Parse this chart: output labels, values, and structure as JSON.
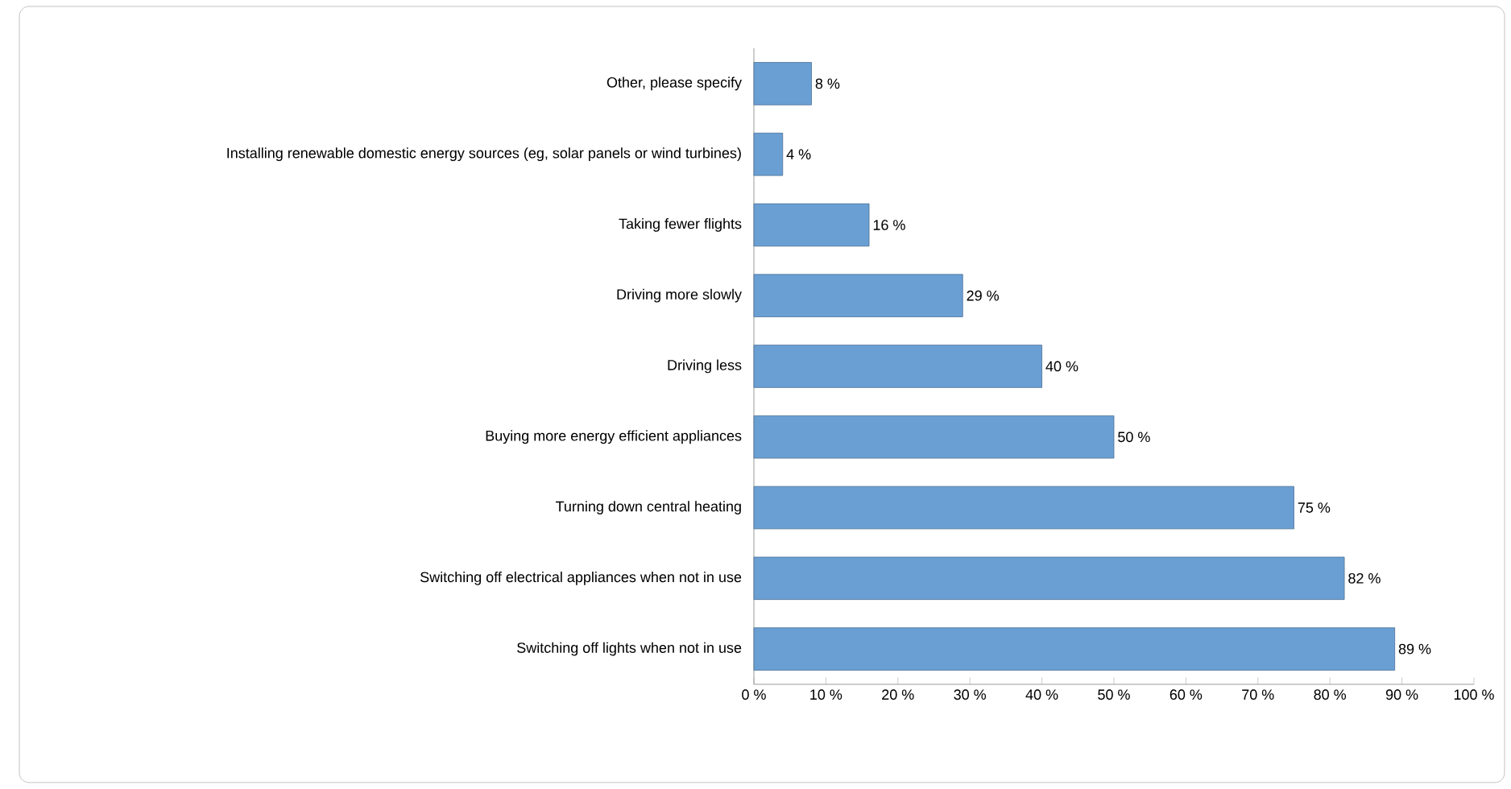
{
  "chart_data": {
    "type": "bar",
    "orientation": "horizontal",
    "categories": [
      "Other, please specify",
      "Installing renewable domestic energy sources (eg, solar panels or wind turbines)",
      "Taking fewer flights",
      "Driving more slowly",
      "Driving less",
      "Buying more energy efficient appliances",
      "Turning down central heating",
      "Switching off electrical appliances when not in use",
      "Switching off lights when not in use"
    ],
    "values": [
      8,
      4,
      16,
      29,
      40,
      50,
      75,
      82,
      89
    ],
    "value_labels": [
      "8 %",
      "4 %",
      "16 %",
      "29 %",
      "40 %",
      "50 %",
      "75 %",
      "82 %",
      "89 %"
    ],
    "color": "#6a9fd4",
    "xlim": [
      0,
      100
    ],
    "xticks": [
      {
        "value": 0,
        "label": "0 %"
      },
      {
        "value": 10,
        "label": "10 %"
      },
      {
        "value": 20,
        "label": "20 %"
      },
      {
        "value": 30,
        "label": "30 %"
      },
      {
        "value": 40,
        "label": "40 %"
      },
      {
        "value": 50,
        "label": "50 %"
      },
      {
        "value": 60,
        "label": "60 %"
      },
      {
        "value": 70,
        "label": "70 %"
      },
      {
        "value": 80,
        "label": "80 %"
      },
      {
        "value": 90,
        "label": "90 %"
      },
      {
        "value": 100,
        "label": "100 %"
      }
    ],
    "grid": false
  }
}
